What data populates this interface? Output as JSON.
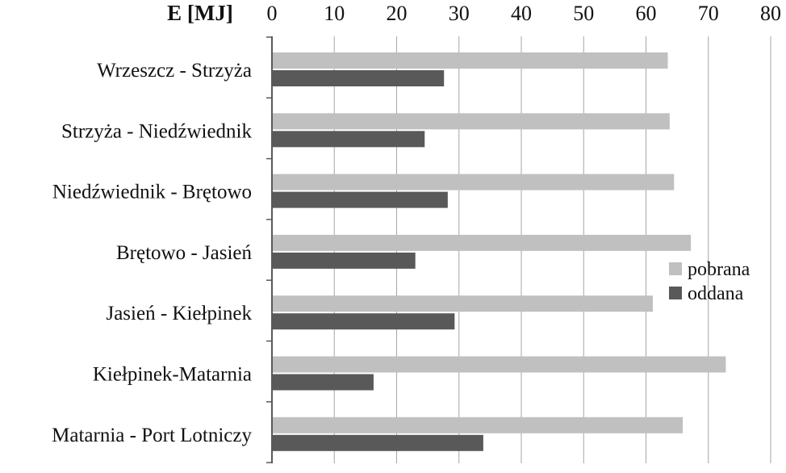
{
  "chart_data": {
    "type": "bar",
    "orientation": "horizontal",
    "title": "",
    "xlabel": "E [MJ]",
    "ylabel": "",
    "xlim": [
      0,
      80
    ],
    "x_ticks": [
      "0",
      "10",
      "20",
      "30",
      "40",
      "50",
      "60",
      "70",
      "80"
    ],
    "grid": true,
    "legend_position": "right",
    "categories": [
      "Wrzeszcz - Strzyża",
      "Strzyża - Niedźwiednik",
      "Niedźwiednik - Brętowo",
      "Brętowo - Jasień",
      "Jasień - Kiełpinek",
      "Kiełpinek-Matarnia",
      "Matarnia - Port Lotniczy"
    ],
    "series": [
      {
        "name": "pobrana",
        "color": "#c0c0c0",
        "values": [
          63.5,
          63.8,
          64.5,
          67.2,
          61.1,
          72.8,
          65.9
        ]
      },
      {
        "name": "oddana",
        "color": "#595959",
        "values": [
          27.6,
          24.5,
          28.2,
          23.0,
          29.3,
          16.3,
          33.9
        ]
      }
    ]
  }
}
